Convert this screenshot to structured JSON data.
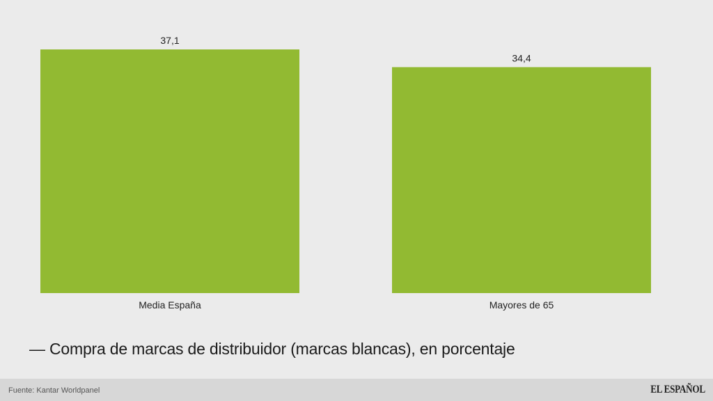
{
  "chart_data": {
    "type": "bar",
    "categories": [
      "Media España",
      "Mayores de 65"
    ],
    "values": [
      37.1,
      34.4
    ],
    "value_labels": [
      "37,1",
      "34,4"
    ],
    "bar_color": "#92ba32",
    "ylim": [
      0,
      37.1
    ],
    "grid": false,
    "legend": "bottom-left"
  },
  "caption": "— Compra de marcas de distribuidor (marcas blancas), en porcentaje",
  "footer": {
    "source": "Fuente: Kantar Worldpanel",
    "brand": "EL ESPAÑOL"
  }
}
